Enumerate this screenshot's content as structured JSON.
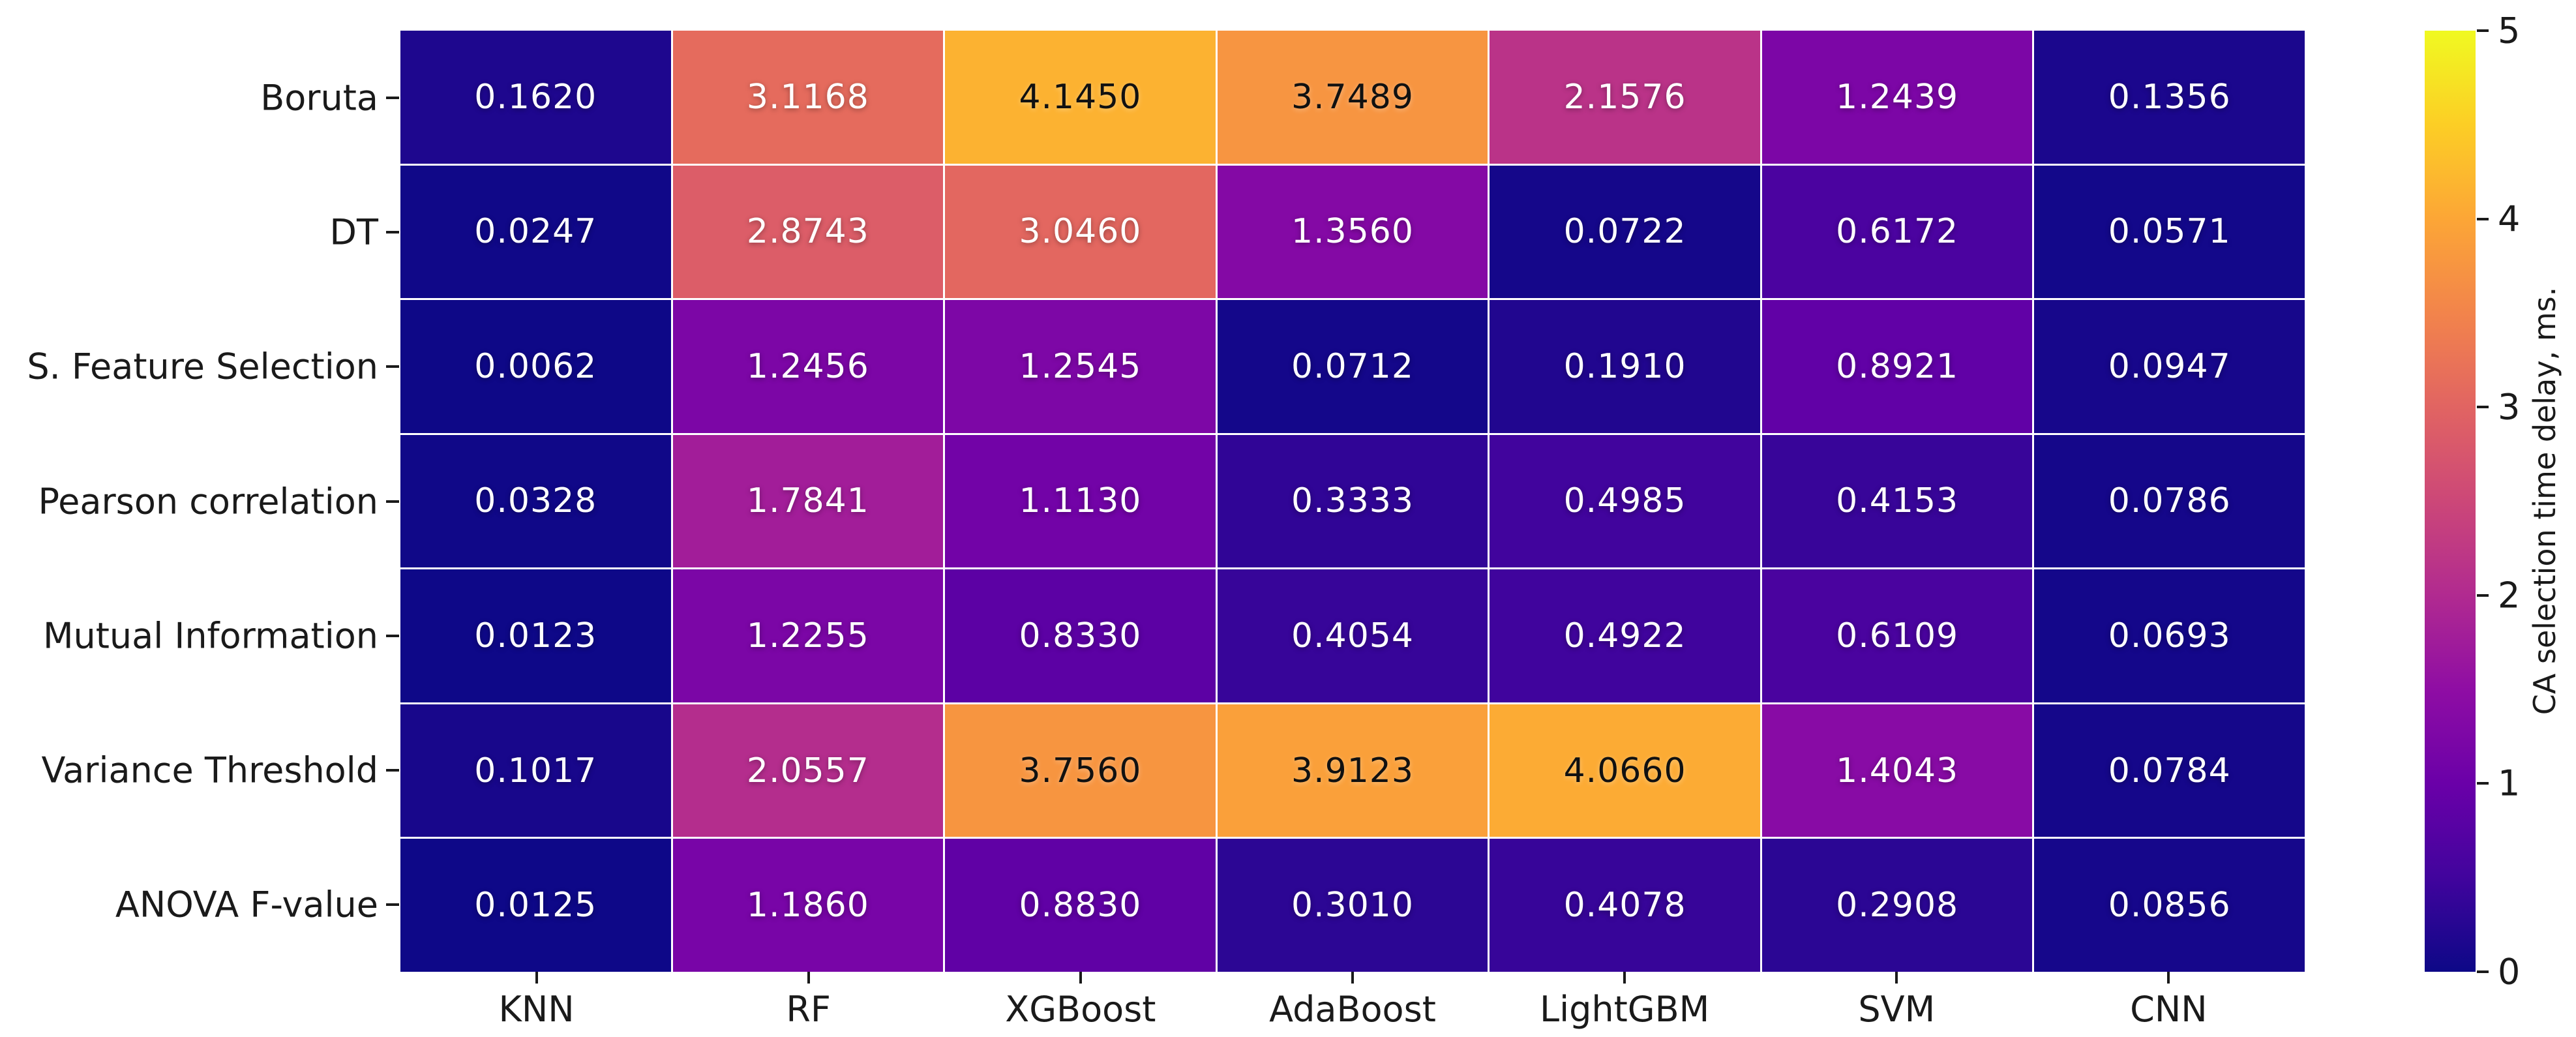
{
  "chart_data": {
    "type": "heatmap",
    "title": "",
    "rows": [
      "Boruta",
      "DT",
      "S. Feature Selection",
      "Pearson correlation",
      "Mutual Information",
      "Variance Threshold",
      "ANOVA F-value"
    ],
    "columns": [
      "KNN",
      "RF",
      "XGBoost",
      "AdaBoost",
      "LightGBM",
      "SVM",
      "CNN"
    ],
    "values": [
      [
        0.162,
        3.1168,
        4.145,
        3.7489,
        2.1576,
        1.2439,
        0.1356
      ],
      [
        0.0247,
        2.8743,
        3.046,
        1.356,
        0.0722,
        0.6172,
        0.0571
      ],
      [
        0.0062,
        1.2456,
        1.2545,
        0.0712,
        0.191,
        0.8921,
        0.0947
      ],
      [
        0.0328,
        1.7841,
        1.113,
        0.3333,
        0.4985,
        0.4153,
        0.0786
      ],
      [
        0.0123,
        1.2255,
        0.833,
        0.4054,
        0.4922,
        0.6109,
        0.0693
      ],
      [
        0.1017,
        2.0557,
        3.756,
        3.9123,
        4.066,
        1.4043,
        0.0784
      ],
      [
        0.0125,
        1.186,
        0.883,
        0.301,
        0.4078,
        0.2908,
        0.0856
      ]
    ],
    "value_decimals": 4,
    "colormap": "plasma",
    "vmin": 0,
    "vmax": 5,
    "grid_lines": "white",
    "colorbar": {
      "label": "CA selection time delay, ms.",
      "ticks": [
        "0",
        "1",
        "2",
        "3",
        "4",
        "5"
      ],
      "position": "right"
    }
  },
  "colors": {
    "background": "#ffffff",
    "grid_line": "#ffffff",
    "axis_text": "#1a1a1a",
    "tick_mark": "#1a1a1a",
    "annot_light": "#ffffff",
    "annot_dark": "#111111",
    "plasma_stops": [
      "#0d0887",
      "#41049d",
      "#6a00a8",
      "#8f0da4",
      "#b12a90",
      "#cc4778",
      "#e16462",
      "#f2844b",
      "#fca636",
      "#fcce25",
      "#f0f921"
    ]
  }
}
